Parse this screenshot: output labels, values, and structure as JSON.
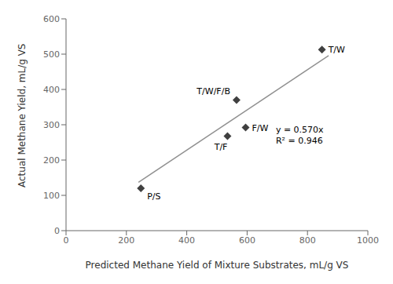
{
  "chart_data": {
    "type": "scatter",
    "xlabel": "Predicted Methane Yield of Mixture Substrates, mL/g VS",
    "ylabel": "Actual Methane Yield, mL/g VS",
    "xlim": [
      0,
      1000
    ],
    "ylim": [
      0,
      600
    ],
    "xticks": [
      0,
      200,
      400,
      600,
      800,
      1000
    ],
    "yticks": [
      0,
      100,
      200,
      300,
      400,
      500,
      600
    ],
    "grid": false,
    "series": [
      {
        "type": "line",
        "color": "#909090",
        "x": [
          240,
          870
        ],
        "values": [
          136.8,
          495.9
        ]
      },
      {
        "type": "scatter",
        "color": "#404040",
        "marker": "diamond",
        "x": [
          248,
          565,
          595,
          535,
          848
        ],
        "values": [
          120,
          370,
          292,
          268,
          513
        ],
        "labels": [
          "P/S",
          "T/W/F/B",
          "F/W",
          "T/F",
          "T/W"
        ]
      }
    ],
    "annotations": [
      {
        "text": "y = 0.570x\nR² = 0.946",
        "x": 695,
        "y": 300
      }
    ]
  }
}
